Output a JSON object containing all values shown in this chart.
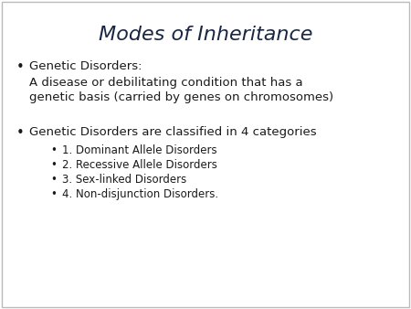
{
  "title": "Modes of Inheritance",
  "title_fontsize": 16,
  "title_color": "#1a2744",
  "background_color": "#ffffff",
  "text_color": "#1a1a1a",
  "bullet1_main": "Genetic Disorders:",
  "bullet1_sub1": "A disease or debilitating condition that has a",
  "bullet1_sub2": "genetic basis (carried by genes on chromosomes)",
  "bullet2_main": "Genetic Disorders are classified in 4 categories",
  "sub_bullets": [
    "1. Dominant Allele Disorders",
    "2. Recessive Allele Disorders",
    "3. Sex-linked Disorders",
    "4. Non-disjunction Disorders."
  ],
  "main_fontsize": 9.5,
  "sub_fontsize": 8.5,
  "bullet_symbol": "•",
  "border_color": "#bbbbbb",
  "font_family": "DejaVu Sans"
}
